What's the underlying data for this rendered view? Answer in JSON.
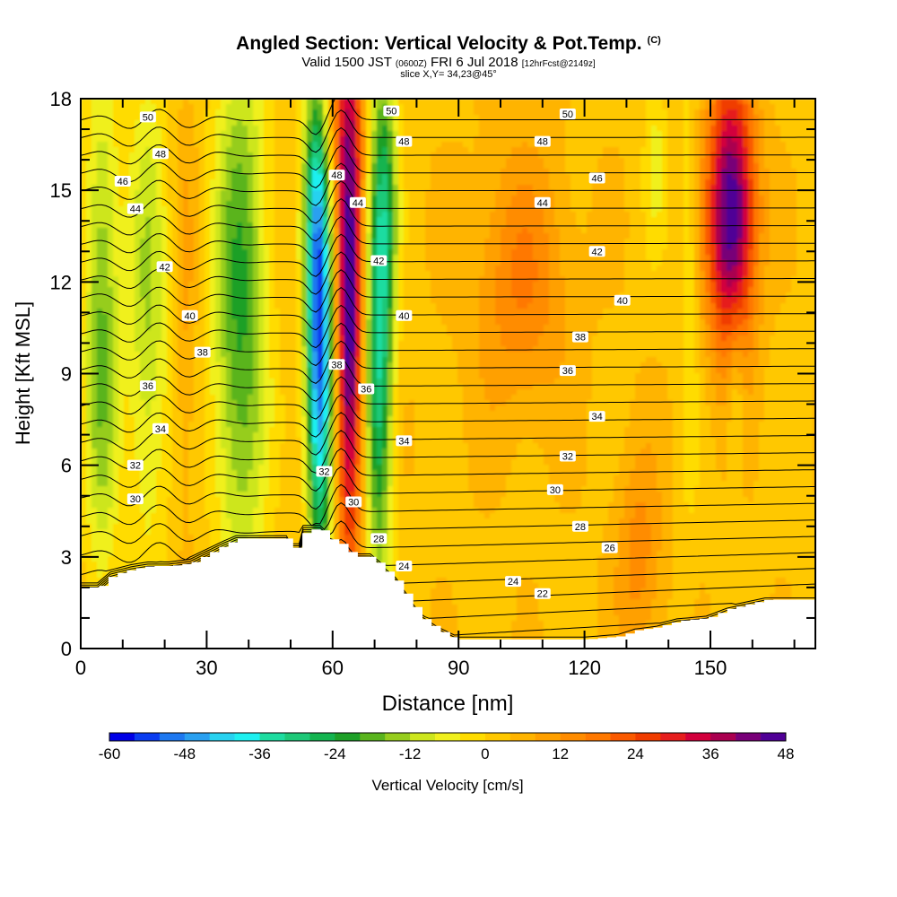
{
  "header": {
    "title": "Angled Section: Vertical Velocity & Pot.Temp.",
    "title_mark": "(C)",
    "valid_prefix": "Valid 1500 JST",
    "valid_utc": "(0600Z)",
    "valid_date": "FRI 6 Jul 2018",
    "forecast": "[12hrFcst@2149z]",
    "slice": "slice X,Y= 34,23@45°"
  },
  "chart_data": {
    "type": "heatmap",
    "title": "Angled Section: Vertical Velocity & Pot.Temp.",
    "xlabel": "Distance [nm]",
    "ylabel": "Height [Kft MSL]",
    "xlim": [
      0,
      175
    ],
    "ylim": [
      0,
      18
    ],
    "x_ticks": [
      0,
      30,
      60,
      90,
      120,
      150
    ],
    "y_ticks": [
      0,
      3,
      6,
      9,
      12,
      15,
      18
    ],
    "colorbar": {
      "label": "Vertical Velocity [cm/s]",
      "min": -60,
      "max": 48,
      "step": 4,
      "ticks": [
        -60,
        -48,
        -36,
        -24,
        -12,
        0,
        12,
        24,
        36,
        48
      ],
      "colors": [
        "#0000e6",
        "#0a3cf0",
        "#1e78f0",
        "#2aa0f0",
        "#28d2f0",
        "#1ef0f0",
        "#1edca0",
        "#1ec878",
        "#14b450",
        "#1ea028",
        "#5ab41e",
        "#96cd1e",
        "#cde61e",
        "#f0f01e",
        "#ffdc00",
        "#ffc800",
        "#ffb400",
        "#ffa000",
        "#ff8c00",
        "#ff7800",
        "#fa5a00",
        "#f03c00",
        "#e61e1e",
        "#d2003c",
        "#aa0050",
        "#780078",
        "#500096"
      ]
    },
    "vertical_velocity_fields": [
      {
        "x": 5,
        "z": 10.5,
        "sx": 3.0,
        "sz": 6.0,
        "w": -20
      },
      {
        "x": 16,
        "z": 11,
        "sx": 3.5,
        "sz": 6.0,
        "w": -15
      },
      {
        "x": 25,
        "z": 11,
        "sx": 2.0,
        "sz": 5.0,
        "w": 6
      },
      {
        "x": 38,
        "z": 11,
        "sx": 4.5,
        "sz": 6.5,
        "w": -24
      },
      {
        "x": 62,
        "z": 17.5,
        "sx": 4.0,
        "sz": 2.0,
        "w": 10
      },
      {
        "x": 57,
        "z": 9,
        "sx": 2.2,
        "sz": 4.5,
        "w": -52
      },
      {
        "x": 56,
        "z": 15,
        "sx": 2.2,
        "sz": 3.5,
        "w": -25
      },
      {
        "x": 64,
        "z": 11,
        "sx": 2.2,
        "sz": 6.0,
        "w": 46
      },
      {
        "x": 71,
        "z": 10,
        "sx": 2.3,
        "sz": 5.5,
        "w": -35
      },
      {
        "x": 73,
        "z": 15,
        "sx": 2.0,
        "sz": 3.0,
        "w": -14
      },
      {
        "x": 105,
        "z": 12,
        "sx": 8.0,
        "sz": 3.0,
        "w": 13
      },
      {
        "x": 133,
        "z": 3,
        "sx": 4.0,
        "sz": 2.5,
        "w": 11
      },
      {
        "x": 155,
        "z": 14.2,
        "sx": 4.0,
        "sz": 3.2,
        "w": 46
      },
      {
        "x": 145,
        "z": 12,
        "sx": 1.5,
        "sz": 5.0,
        "w": -8
      },
      {
        "x": 156,
        "z": 8.5,
        "sx": 1.5,
        "sz": 2.0,
        "w": -10
      },
      {
        "x": 137,
        "z": 16,
        "sx": 2.0,
        "sz": 2.0,
        "w": -8
      }
    ],
    "terrain": [
      [
        0,
        2.0
      ],
      [
        4,
        2.0
      ],
      [
        7,
        2.4
      ],
      [
        12,
        2.6
      ],
      [
        16,
        2.7
      ],
      [
        21,
        2.7
      ],
      [
        26,
        2.8
      ],
      [
        30,
        3.1
      ],
      [
        34,
        3.4
      ],
      [
        37,
        3.6
      ],
      [
        41,
        3.6
      ],
      [
        46,
        3.6
      ],
      [
        49,
        3.6
      ],
      [
        50,
        3.3
      ],
      [
        52,
        3.3
      ],
      [
        53,
        3.9
      ],
      [
        57,
        3.9
      ],
      [
        59,
        3.6
      ],
      [
        62,
        3.4
      ],
      [
        65,
        3.0
      ],
      [
        69,
        3.0
      ],
      [
        72,
        2.6
      ],
      [
        75,
        2.2
      ],
      [
        78,
        1.6
      ],
      [
        81,
        1.0
      ],
      [
        85,
        0.6
      ],
      [
        89,
        0.3
      ],
      [
        95,
        0.3
      ],
      [
        105,
        0.3
      ],
      [
        115,
        0.3
      ],
      [
        120,
        0.3
      ],
      [
        128,
        0.4
      ],
      [
        132,
        0.6
      ],
      [
        137,
        0.7
      ],
      [
        142,
        0.9
      ],
      [
        149,
        1.0
      ],
      [
        154,
        1.3
      ],
      [
        157,
        1.4
      ],
      [
        163,
        1.6
      ],
      [
        169,
        1.6
      ],
      [
        175,
        1.6
      ]
    ],
    "theta_contours": {
      "label": "Pot.Temp. (C)",
      "labeled_values": [
        22,
        24,
        26,
        28,
        30,
        32,
        34,
        36,
        38,
        40,
        42,
        44,
        46,
        48,
        50
      ],
      "labels": [
        {
          "text": "50",
          "x": 16,
          "z": 17.4
        },
        {
          "text": "48",
          "x": 19,
          "z": 16.2
        },
        {
          "text": "46",
          "x": 10,
          "z": 15.3
        },
        {
          "text": "44",
          "x": 13,
          "z": 14.4
        },
        {
          "text": "42",
          "x": 20,
          "z": 12.5
        },
        {
          "text": "40",
          "x": 26,
          "z": 10.9
        },
        {
          "text": "38",
          "x": 29,
          "z": 9.7
        },
        {
          "text": "36",
          "x": 16,
          "z": 8.6
        },
        {
          "text": "34",
          "x": 19,
          "z": 7.2
        },
        {
          "text": "32",
          "x": 13,
          "z": 6.0
        },
        {
          "text": "30",
          "x": 13,
          "z": 4.9
        },
        {
          "text": "50",
          "x": 74,
          "z": 17.6
        },
        {
          "text": "48",
          "x": 77,
          "z": 16.6
        },
        {
          "text": "48",
          "x": 61,
          "z": 15.5
        },
        {
          "text": "44",
          "x": 66,
          "z": 14.6
        },
        {
          "text": "42",
          "x": 71,
          "z": 12.7
        },
        {
          "text": "40",
          "x": 77,
          "z": 10.9
        },
        {
          "text": "38",
          "x": 61,
          "z": 9.3
        },
        {
          "text": "36",
          "x": 68,
          "z": 8.5
        },
        {
          "text": "34",
          "x": 77,
          "z": 6.8
        },
        {
          "text": "32",
          "x": 58,
          "z": 5.8
        },
        {
          "text": "30",
          "x": 65,
          "z": 4.8
        },
        {
          "text": "28",
          "x": 71,
          "z": 3.6
        },
        {
          "text": "24",
          "x": 77,
          "z": 2.7
        },
        {
          "text": "50",
          "x": 116,
          "z": 17.5
        },
        {
          "text": "48",
          "x": 110,
          "z": 16.6
        },
        {
          "text": "46",
          "x": 123,
          "z": 15.4
        },
        {
          "text": "44",
          "x": 110,
          "z": 14.6
        },
        {
          "text": "42",
          "x": 123,
          "z": 13.0
        },
        {
          "text": "40",
          "x": 129,
          "z": 11.4
        },
        {
          "text": "38",
          "x": 119,
          "z": 10.2
        },
        {
          "text": "36",
          "x": 116,
          "z": 9.1
        },
        {
          "text": "34",
          "x": 123,
          "z": 7.6
        },
        {
          "text": "32",
          "x": 116,
          "z": 6.3
        },
        {
          "text": "30",
          "x": 113,
          "z": 5.2
        },
        {
          "text": "28",
          "x": 119,
          "z": 4.0
        },
        {
          "text": "26",
          "x": 126,
          "z": 3.3
        },
        {
          "text": "24",
          "x": 103,
          "z": 2.2
        },
        {
          "text": "22",
          "x": 110,
          "z": 1.8
        }
      ]
    }
  }
}
